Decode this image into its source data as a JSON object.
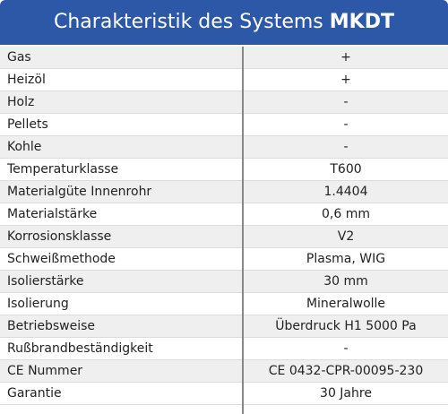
{
  "header": {
    "title": "Charakteristik des Systems",
    "title_bold": "MKDT"
  },
  "table": {
    "rows": [
      [
        "Gas",
        "+"
      ],
      [
        "Heizöl",
        "+"
      ],
      [
        "Holz",
        "-"
      ],
      [
        "Pellets",
        "-"
      ],
      [
        "Kohle",
        "-"
      ],
      [
        "Temperaturklasse",
        "T600"
      ],
      [
        "Materialgüte Innenrohr",
        "1.4404"
      ],
      [
        "Materialstärke",
        "0,6 mm"
      ],
      [
        "Korrosionsklasse",
        "V2"
      ],
      [
        "Schweißmethode",
        "Plasma, WIG"
      ],
      [
        "Isolierstärke",
        "30 mm"
      ],
      [
        "Isolierung",
        "Mineralwolle"
      ],
      [
        "Betriebsweise",
        "Überdruck H1 5000 Pa"
      ],
      [
        "Rußbrandbeständigkeit",
        "-"
      ],
      [
        "CE Nummer",
        "CE 0432-CPR-00095-230"
      ],
      [
        "Garantie",
        "30 Jahre"
      ]
    ]
  }
}
